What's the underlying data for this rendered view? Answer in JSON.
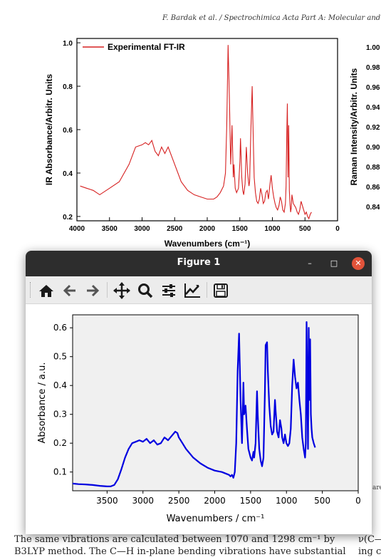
{
  "document": {
    "journal_header": "F. Bardak et al. / Spectrochimica Acta Part A: Molecular and Bio",
    "body_line1": "The same vibrations are calculated between 1070 and 1298 cm⁻¹ by",
    "body_line2": "B3LYP method. The C—H in-plane bending vibrations have substantial",
    "right_line1": "ν(C—",
    "right_line2": "ing c",
    "right_fragment": "are"
  },
  "window": {
    "title": "Figure 1",
    "minimize_glyph": "–",
    "maximize_glyph": "□",
    "close_glyph": "✕"
  },
  "toolbar": {
    "icons": [
      "home-icon",
      "back-icon",
      "forward-icon",
      "pan-icon",
      "zoom-icon",
      "configure-subplots-icon",
      "edit-axis-icon",
      "save-icon"
    ]
  },
  "chart_data": [
    {
      "type": "line",
      "title": "",
      "legend": "Experimental FT-IR",
      "legend_placement": "top-left",
      "xlabel": "Wavenumbers (cm⁻¹)",
      "ylabel": "IR Absorbance/Arbitr. Units",
      "xlim": [
        4000,
        0
      ],
      "ylim": [
        0.18,
        1.02
      ],
      "xticks": [
        "4000",
        "3500",
        "3000",
        "2500",
        "2000",
        "1500",
        "1000",
        "500",
        "0"
      ],
      "yticks": [
        "0.2",
        "0.4",
        "0.6",
        "0.8",
        "1.0"
      ],
      "color": "#d62020",
      "series": [
        {
          "x": [
            3950,
            3850,
            3750,
            3650,
            3500,
            3350,
            3200,
            3100,
            3000,
            2950,
            2900,
            2850,
            2800,
            2750,
            2700,
            2650,
            2600,
            2550,
            2500,
            2400,
            2300,
            2200,
            2100,
            2000,
            1900,
            1850,
            1800,
            1750,
            1720,
            1700,
            1680,
            1660,
            1640,
            1620,
            1600,
            1590,
            1570,
            1550,
            1520,
            1500,
            1490,
            1470,
            1455,
            1440,
            1420,
            1400,
            1380,
            1360,
            1350,
            1330,
            1310,
            1295,
            1280,
            1260,
            1240,
            1220,
            1200,
            1180,
            1160,
            1140,
            1120,
            1100,
            1080,
            1060,
            1040,
            1020,
            1000,
            980,
            960,
            940,
            920,
            900,
            880,
            860,
            840,
            820,
            800,
            790,
            780,
            770,
            760,
            750,
            740,
            730,
            720,
            710,
            700,
            690,
            680,
            660,
            640,
            620,
            600,
            580,
            560,
            540,
            520,
            500,
            480,
            460,
            440,
            420,
            400
          ],
          "y": [
            0.34,
            0.33,
            0.32,
            0.3,
            0.33,
            0.36,
            0.44,
            0.52,
            0.53,
            0.54,
            0.53,
            0.55,
            0.5,
            0.48,
            0.52,
            0.49,
            0.52,
            0.48,
            0.44,
            0.36,
            0.32,
            0.3,
            0.29,
            0.28,
            0.28,
            0.29,
            0.31,
            0.34,
            0.4,
            0.62,
            0.99,
            0.75,
            0.44,
            0.62,
            0.38,
            0.44,
            0.33,
            0.31,
            0.33,
            0.45,
            0.56,
            0.38,
            0.32,
            0.3,
            0.35,
            0.52,
            0.4,
            0.34,
            0.36,
            0.6,
            0.8,
            0.58,
            0.38,
            0.31,
            0.27,
            0.26,
            0.28,
            0.33,
            0.3,
            0.26,
            0.27,
            0.31,
            0.32,
            0.28,
            0.34,
            0.39,
            0.33,
            0.29,
            0.26,
            0.24,
            0.23,
            0.25,
            0.29,
            0.27,
            0.23,
            0.22,
            0.26,
            0.34,
            0.56,
            0.72,
            0.38,
            0.62,
            0.32,
            0.26,
            0.22,
            0.24,
            0.3,
            0.28,
            0.26,
            0.25,
            0.24,
            0.22,
            0.21,
            0.23,
            0.27,
            0.25,
            0.23,
            0.21,
            0.22,
            0.2,
            0.19,
            0.21,
            0.22
          ]
        }
      ]
    },
    {
      "type": "line",
      "title": "",
      "legend": "",
      "ylabel": "Raman Intensity/Arbitr. Units",
      "yticks": [
        "1.00",
        "0.98",
        "0.96",
        "0.94",
        "0.92",
        "0.90",
        "0.88",
        "0.86",
        "0.84"
      ],
      "ylim": [
        0.83,
        1.0
      ],
      "note_visible": "partially hidden behind window"
    },
    {
      "type": "line",
      "title": "",
      "xlabel": "Wavenumbers / cm⁻¹",
      "ylabel": "Absorbance / a.u.",
      "xlim": [
        3980,
        0
      ],
      "ylim": [
        0.035,
        0.645
      ],
      "xticks": [
        "3500",
        "3000",
        "2500",
        "2000",
        "1500",
        "1000",
        "500",
        "0"
      ],
      "yticks": [
        "0.1",
        "0.2",
        "0.3",
        "0.4",
        "0.5",
        "0.6"
      ],
      "grid": false,
      "color": "#0000e0",
      "background": "#f0f0f0",
      "series": [
        {
          "x": [
            3980,
            3900,
            3800,
            3700,
            3600,
            3500,
            3450,
            3400,
            3350,
            3300,
            3250,
            3200,
            3150,
            3100,
            3050,
            3000,
            2950,
            2900,
            2850,
            2800,
            2750,
            2700,
            2650,
            2600,
            2550,
            2520,
            2500,
            2450,
            2400,
            2300,
            2200,
            2100,
            2000,
            1900,
            1850,
            1800,
            1780,
            1760,
            1740,
            1720,
            1700,
            1680,
            1660,
            1640,
            1620,
            1600,
            1590,
            1570,
            1550,
            1530,
            1500,
            1480,
            1460,
            1450,
            1430,
            1410,
            1400,
            1380,
            1360,
            1340,
            1320,
            1300,
            1290,
            1270,
            1260,
            1240,
            1220,
            1200,
            1180,
            1160,
            1150,
            1130,
            1110,
            1090,
            1070,
            1060,
            1040,
            1020,
            1000,
            980,
            960,
            940,
            920,
            900,
            880,
            860,
            840,
            820,
            800,
            780,
            760,
            740,
            730,
            720,
            710,
            700,
            690,
            680,
            670,
            660,
            650,
            640,
            620,
            600
          ],
          "y": [
            0.06,
            0.058,
            0.057,
            0.055,
            0.052,
            0.05,
            0.05,
            0.055,
            0.075,
            0.11,
            0.15,
            0.18,
            0.2,
            0.205,
            0.21,
            0.205,
            0.215,
            0.2,
            0.21,
            0.195,
            0.2,
            0.22,
            0.21,
            0.225,
            0.24,
            0.235,
            0.22,
            0.2,
            0.18,
            0.15,
            0.13,
            0.115,
            0.105,
            0.1,
            0.095,
            0.09,
            0.085,
            0.09,
            0.08,
            0.1,
            0.2,
            0.45,
            0.58,
            0.35,
            0.2,
            0.41,
            0.3,
            0.33,
            0.25,
            0.18,
            0.15,
            0.14,
            0.17,
            0.15,
            0.2,
            0.38,
            0.3,
            0.18,
            0.14,
            0.12,
            0.15,
            0.38,
            0.54,
            0.55,
            0.45,
            0.33,
            0.26,
            0.23,
            0.24,
            0.35,
            0.31,
            0.24,
            0.22,
            0.28,
            0.25,
            0.22,
            0.2,
            0.23,
            0.2,
            0.19,
            0.2,
            0.25,
            0.4,
            0.49,
            0.43,
            0.39,
            0.41,
            0.35,
            0.3,
            0.22,
            0.18,
            0.15,
            0.2,
            0.62,
            0.4,
            0.18,
            0.6,
            0.35,
            0.56,
            0.3,
            0.25,
            0.22,
            0.2,
            0.185
          ]
        }
      ]
    }
  ]
}
